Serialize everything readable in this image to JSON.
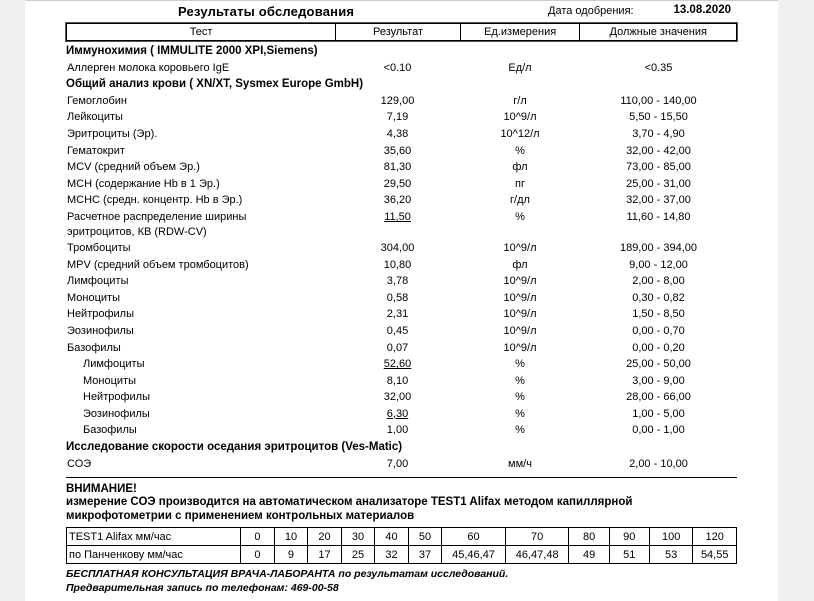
{
  "colors": {
    "canvas_bg": "#eef0f2",
    "page_bg": "#ffffff",
    "text": "#000000",
    "border": "#000000"
  },
  "header": {
    "title": "Результаты обследования",
    "approval_label": "Дата одобрения:",
    "approval_date": "13.08.2020"
  },
  "results_table": {
    "columns": [
      "Тест",
      "Результат",
      "Ед.измерения",
      "Должные значения"
    ],
    "rows": [
      {
        "type": "section",
        "label": "Иммунохимия ( IMMULITE 2000 XPI,Siemens)"
      },
      {
        "type": "row",
        "test": "Аллерген молока коровьего IgE",
        "result": "<0.10",
        "units": "Ед/л",
        "reference": "<0.35"
      },
      {
        "type": "section",
        "label": "Общий анализ крови ( XN/XT, Sysmex  Europe GmbH)"
      },
      {
        "type": "row",
        "test": "Гемоглобин",
        "result": "129,00",
        "units": "г/л",
        "reference": "110,00 - 140,00"
      },
      {
        "type": "row",
        "test": "Лейкоциты",
        "result": "7,19",
        "units": "10^9/л",
        "reference": "5,50 - 15,50"
      },
      {
        "type": "row",
        "test": "Эритроциты (Эр).",
        "result": "4,38",
        "units": "10^12/л",
        "reference": "3,70 - 4,90"
      },
      {
        "type": "row",
        "test": "Гематокрит",
        "result": "35,60",
        "units": "%",
        "reference": "32,00 - 42,00"
      },
      {
        "type": "row",
        "test": "MCV (средний объем Эр.)",
        "result": "81,30",
        "units": "фл",
        "reference": "73,00 - 85,00"
      },
      {
        "type": "row",
        "test": "MCH (содержание Hb в 1 Эр.)",
        "result": "29,50",
        "units": "пг",
        "reference": "25,00 - 31,00"
      },
      {
        "type": "row",
        "test": "MCHC (средн. концентр. Hb в Эр.)",
        "result": "36,20",
        "units": "г/дл",
        "reference": "32,00 - 37,00"
      },
      {
        "type": "row",
        "test": "Расчетное распределение ширины",
        "test2": "эритроцитов, КВ (RDW-CV)",
        "result": "11,50",
        "underline": true,
        "units": "%",
        "reference": "11,60 - 14,80"
      },
      {
        "type": "row",
        "test": "Тромбоциты",
        "result": "304,00",
        "units": "10^9/л",
        "reference": "189,00 - 394,00"
      },
      {
        "type": "row",
        "test": "MPV (средний объем тромбоцитов)",
        "result": "10,80",
        "units": "фл",
        "reference": "9,00 - 12,00"
      },
      {
        "type": "row",
        "test": "Лимфоциты",
        "result": "3,78",
        "units": "10^9/л",
        "reference": "2,00 - 8,00"
      },
      {
        "type": "row",
        "test": "Моноциты",
        "result": "0,58",
        "units": "10^9/л",
        "reference": "0,30 - 0,82"
      },
      {
        "type": "row",
        "test": "Нейтрофилы",
        "result": "2,31",
        "units": "10^9/л",
        "reference": "1,50 - 8,50"
      },
      {
        "type": "row",
        "test": "Эозинофилы",
        "result": "0,45",
        "units": "10^9/л",
        "reference": "0,00 - 0,70"
      },
      {
        "type": "row",
        "test": "Базофилы",
        "result": "0,07",
        "units": "10^9/л",
        "reference": "0,00 - 0,20"
      },
      {
        "type": "row",
        "indent": true,
        "test": "Лимфоциты",
        "result": "52,60",
        "underline": true,
        "units": "%",
        "reference": "25,00 - 50,00"
      },
      {
        "type": "row",
        "indent": true,
        "test": "Моноциты",
        "result": "8,10",
        "units": "%",
        "reference": "3,00 - 9,00"
      },
      {
        "type": "row",
        "indent": true,
        "test": "Нейтрофилы",
        "result": "32,00",
        "units": "%",
        "reference": "28,00 - 66,00"
      },
      {
        "type": "row",
        "indent": true,
        "test": "Эозинофилы",
        "result": "6,30",
        "underline": true,
        "units": "%",
        "reference": "1,00 - 5,00"
      },
      {
        "type": "row",
        "indent": true,
        "test": "Базофилы",
        "result": "1,00",
        "units": "%",
        "reference": "0,00 - 1,00"
      },
      {
        "type": "section",
        "label": "Исследование скорости оседания эритроцитов (Ves-Matic)"
      },
      {
        "type": "row",
        "test": "СОЭ",
        "result": "7,00",
        "units": "мм/ч",
        "reference": "2,00 - 10,00"
      }
    ]
  },
  "notice": {
    "heading": "ВНИМАНИЕ!",
    "line1": "измерение СОЭ производится на автоматическом анализаторе TEST1 Alifax методом капиллярной",
    "line2": "микрофотометрии с применением контрольных материалов"
  },
  "conversion_table": {
    "rows": [
      {
        "label": "TEST1 Alifax мм/час",
        "values": [
          "0",
          "10",
          "20",
          "30",
          "40",
          "50",
          "60",
          "70",
          "80",
          "90",
          "100",
          "120"
        ]
      },
      {
        "label": "по Панченкову мм/час",
        "values": [
          "0",
          "9",
          "17",
          "25",
          "32",
          "37",
          "45,46,47",
          "46,47,48",
          "49",
          "51",
          "53",
          "54,55"
        ]
      }
    ],
    "col_widths_percent": [
      26,
      5,
      5,
      5,
      5,
      5,
      5,
      9.5,
      9.5,
      6,
      6,
      6.5,
      6.5
    ]
  },
  "footer": {
    "line1": "БЕСПЛАТНАЯ КОНСУЛЬТАЦИЯ ВРАЧА-ЛАБОРАНТА по результатам исследований.",
    "line2": "Предварительная запись по телефонам: 469-00-58"
  }
}
